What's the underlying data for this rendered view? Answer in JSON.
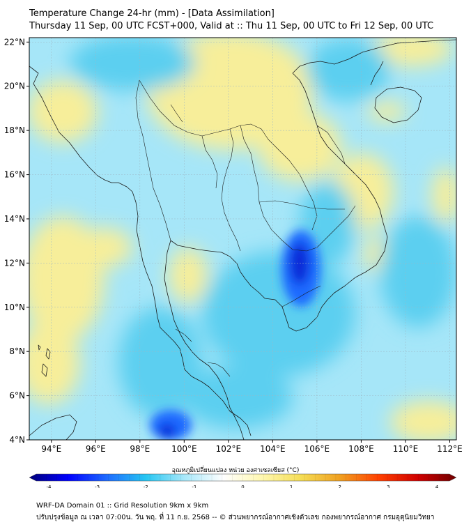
{
  "header": {
    "title": "Temperature Change 24-hr (mm) - [Data Assimilation]",
    "subtitle": "Thursday 11 Sep, 00 UTC FCST+000, Valid at :: Thu 11 Sep, 00 UTC to Fri 12 Sep, 00 UTC"
  },
  "map": {
    "lat_labels": [
      "22°N",
      "20°N",
      "18°N",
      "16°N",
      "14°N",
      "12°N",
      "10°N",
      "8°N",
      "6°N",
      "4°N"
    ],
    "lon_labels": [
      "94°E",
      "96°E",
      "98°E",
      "100°E",
      "102°E",
      "104°E",
      "106°E",
      "108°E",
      "110°E",
      "112°E"
    ],
    "lat_range": [
      4,
      22.2
    ],
    "lon_range": [
      93,
      112.3
    ],
    "grid": true
  },
  "colorbar": {
    "label": "อุณหภูมิเปลี่ยนแปลง หน่วย องศาเซลเซียส (°C)",
    "min": -4,
    "max": 4,
    "ticks": [
      "-4",
      "-3",
      "-2",
      "-1",
      "0",
      "1",
      "2",
      "3",
      "4"
    ],
    "colors": [
      "#00007a",
      "#0000ff",
      "#1e6bff",
      "#26c6f2",
      "#a8e8fa",
      "#ffffff",
      "#fff8b0",
      "#f5dd55",
      "#f0a020",
      "#ff4000",
      "#d00000",
      "#700000"
    ]
  },
  "field_colors": {
    "warm": "#f7ee9a",
    "warm_strong": "#f2d75e",
    "cool": "#a6e6f8",
    "cool_mid": "#5ccff0",
    "cool_strong": "#1e6bff",
    "cool_peak": "#0a2bd8"
  },
  "footer": {
    "line1": "WRF-DA Domain 01 :: Grid Resolution 9km x 9km",
    "line2": "ปรับปรุงข้อมูล ณ เวลา 07:00น. วัน พฤ. ที่ 11 ก.ย. 2568 -- © ส่วนพยากรณ์อากาศเชิงตัวเลข กองพยากรณ์อากาศ กรมอุตุนิยมวิทยา"
  }
}
